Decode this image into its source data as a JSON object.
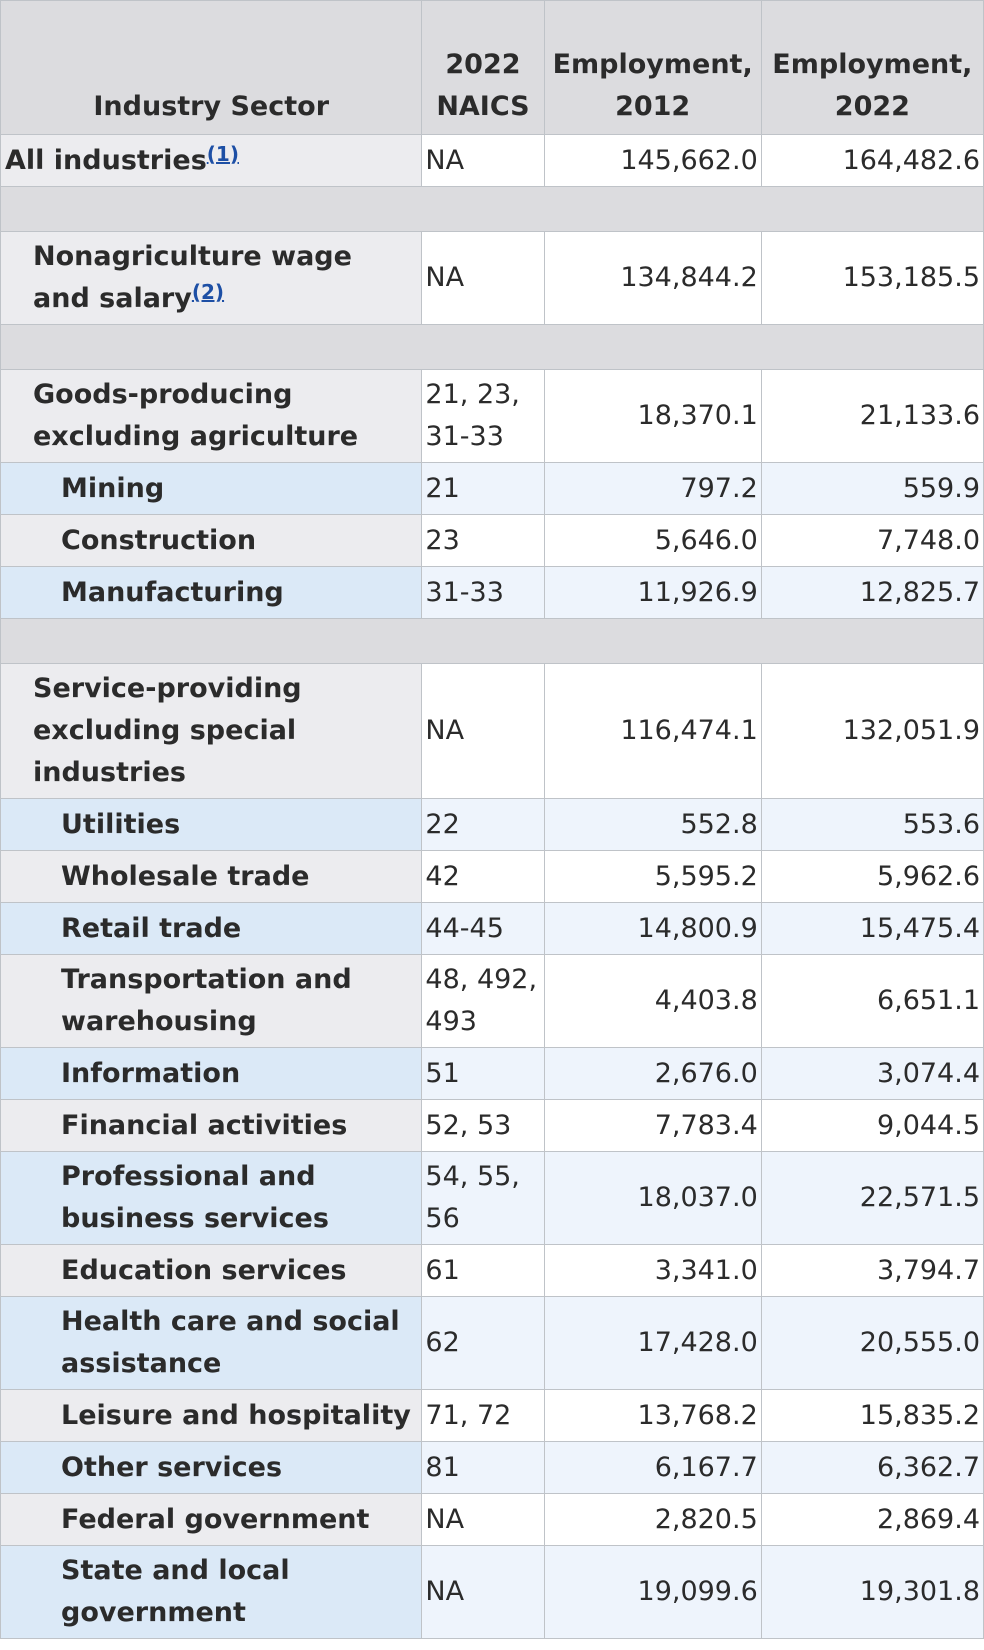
{
  "header": {
    "sector": "Industry Sector",
    "naics": "2022 NAICS",
    "emp2012": "Employment, 2012",
    "emp2022": "Employment, 2022"
  },
  "rows": {
    "all": {
      "sector": "All industries",
      "fn": "(1)",
      "naics": "NA",
      "e2012": "145,662.0",
      "e2022": "164,482.6"
    },
    "nonag": {
      "sector": "Nonagriculture wage and salary",
      "fn": "(2)",
      "naics": "NA",
      "e2012": "134,844.2",
      "e2022": "153,185.5"
    },
    "goods": {
      "sector": "Goods-producing excluding agriculture",
      "naics": "21, 23, 31-33",
      "e2012": "18,370.1",
      "e2022": "21,133.6"
    },
    "mining": {
      "sector": "Mining",
      "naics": "21",
      "e2012": "797.2",
      "e2022": "559.9"
    },
    "construction": {
      "sector": "Construction",
      "naics": "23",
      "e2012": "5,646.0",
      "e2022": "7,748.0"
    },
    "manufacturing": {
      "sector": "Manufacturing",
      "naics": "31-33",
      "e2012": "11,926.9",
      "e2022": "12,825.7"
    },
    "service": {
      "sector": "Service-providing excluding special industries",
      "naics": "NA",
      "e2012": "116,474.1",
      "e2022": "132,051.9"
    },
    "utilities": {
      "sector": "Utilities",
      "naics": "22",
      "e2012": "552.8",
      "e2022": "553.6"
    },
    "wholesale": {
      "sector": "Wholesale trade",
      "naics": "42",
      "e2012": "5,595.2",
      "e2022": "5,962.6"
    },
    "retail": {
      "sector": "Retail trade",
      "naics": "44-45",
      "e2012": "14,800.9",
      "e2022": "15,475.4"
    },
    "transport": {
      "sector": "Transportation and warehousing",
      "naics": "48, 492, 493",
      "e2012": "4,403.8",
      "e2022": "6,651.1"
    },
    "information": {
      "sector": "Information",
      "naics": "51",
      "e2012": "2,676.0",
      "e2022": "3,074.4"
    },
    "financial": {
      "sector": "Financial activities",
      "naics": "52, 53",
      "e2012": "7,783.4",
      "e2022": "9,044.5"
    },
    "professional": {
      "sector": "Professional and business services",
      "naics": "54, 55, 56",
      "e2012": "18,037.0",
      "e2022": "22,571.5"
    },
    "education": {
      "sector": "Education services",
      "naics": "61",
      "e2012": "3,341.0",
      "e2022": "3,794.7"
    },
    "health": {
      "sector": "Health care and social assistance",
      "naics": "62",
      "e2012": "17,428.0",
      "e2022": "20,555.0"
    },
    "leisure": {
      "sector": "Leisure and hospitality",
      "naics": "71, 72",
      "e2012": "13,768.2",
      "e2022": "15,835.2"
    },
    "other": {
      "sector": "Other services",
      "naics": "81",
      "e2012": "6,167.7",
      "e2022": "6,362.7"
    },
    "federal": {
      "sector": "Federal government",
      "naics": "NA",
      "e2012": "2,820.5",
      "e2022": "2,869.4"
    },
    "state": {
      "sector": "State and local government",
      "naics": "NA",
      "e2012": "19,099.6",
      "e2022": "19,301.8"
    }
  }
}
